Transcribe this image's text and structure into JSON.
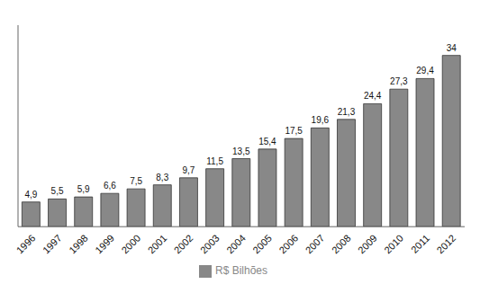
{
  "chart_data": {
    "type": "bar",
    "categories": [
      "1996",
      "1997",
      "1998",
      "1999",
      "2000",
      "2001",
      "2002",
      "2003",
      "2004",
      "2005",
      "2006",
      "2007",
      "2008",
      "2009",
      "2010",
      "2011",
      "2012"
    ],
    "series": [
      {
        "name": "R$ Bilhões",
        "color": "#888888",
        "values": [
          4.9,
          5.5,
          5.9,
          6.6,
          7.5,
          8.3,
          9.7,
          11.5,
          13.5,
          15.4,
          17.5,
          19.6,
          21.3,
          24.4,
          27.3,
          29.4,
          34
        ],
        "value_labels": [
          "4,9",
          "5,5",
          "5,9",
          "6,6",
          "7,5",
          "8,3",
          "9,7",
          "11,5",
          "13,5",
          "15,4",
          "17,5",
          "19,6",
          "21,3",
          "24,4",
          "27,3",
          "29,4",
          "34"
        ]
      }
    ],
    "ylim": [
      0,
      40
    ],
    "data_labels": true,
    "tick_labels": "x",
    "legend": "bottom",
    "grid": false
  }
}
